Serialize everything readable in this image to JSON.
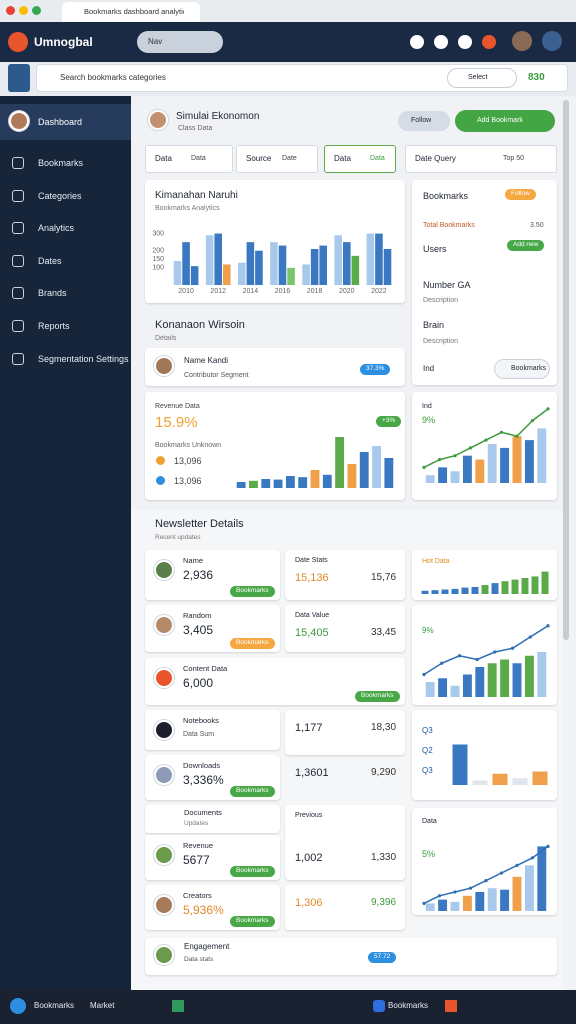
{
  "browser": {
    "tab": "Bookmarks dashboard analytics"
  },
  "header": {
    "app": "Umnogbal",
    "search": "Nav"
  },
  "toolbar": {
    "search": "Search bookmarks categories",
    "select": "Select",
    "count": "830"
  },
  "sidebar": {
    "profile": "Dashboard",
    "items": [
      "Bookmarks",
      "Categories",
      "Analytics",
      "Dates",
      "Brands",
      "Reports",
      "Segmentation Settings"
    ]
  },
  "profile": {
    "name": "Simulai Ekonomon",
    "sub": "Class Data",
    "follow": "Follow",
    "add": "Add Bookmark"
  },
  "filters": [
    [
      "Data",
      "Data"
    ],
    [
      "Source",
      "Date"
    ],
    [
      "Data",
      "Data"
    ],
    [
      "Date Query",
      "Top 50"
    ]
  ],
  "panel1": {
    "title": "Kimanahan Naruhi",
    "subtitle": "Bookmarks Analytics"
  },
  "side": {
    "title": "Bookmarks",
    "follow": "Follow",
    "total": "Total Bookmarks",
    "total_value": "3.50",
    "users": "Users",
    "add": "Add new",
    "number": "Number GA",
    "number_desc": "Description",
    "brain": "Brain",
    "brain_desc": "Description",
    "ind": "Ind",
    "button": "Bookmarks"
  },
  "section1": {
    "title": "Konanaon Wirsoin",
    "sub": "Details"
  },
  "contrib": {
    "name": "Name Kandi",
    "sub": "Contributor Segment",
    "badge": "37.3%"
  },
  "revenue": {
    "label": "Revenue Data",
    "value": "15.9%",
    "sub": "Bookmarks Unknown",
    "a": "13,096",
    "b": "13,096",
    "badge": "+3%"
  },
  "trend1": {
    "label": "Ind",
    "value": "9%"
  },
  "section2": {
    "title": "Newsletter Details",
    "sub": "Recent updates"
  },
  "tiles": [
    {
      "label": "Name",
      "value": "2,936",
      "badge": "Bookmarks"
    },
    {
      "label": "Random",
      "value": "3,405",
      "badge": "Bookmarks"
    },
    {
      "label": "Content Data",
      "value": "6,000",
      "badge": "Bookmarks"
    },
    {
      "label": "Notebooks",
      "value": "Data Sum"
    },
    {
      "label": "Downloads",
      "value": "3,336%",
      "badge": "Bookmarks"
    },
    {
      "label": "Revenue",
      "value": "5677",
      "badge": "Bookmarks"
    },
    {
      "label": "Creators",
      "value": "5,936%",
      "badge": "Bookmarks"
    }
  ],
  "documents": {
    "title": "Documents",
    "sub": "Updates"
  },
  "stats": [
    {
      "label": "Date Stats",
      "a": "15,136",
      "b": "15,76"
    },
    {
      "label": "Data Value",
      "a": "15,405",
      "b": "33,45"
    },
    {
      "a": "1,177",
      "b": "18,30"
    },
    {
      "a": "1,3601",
      "b": "9,290"
    },
    {
      "label": "Previous",
      "a": "1,002",
      "b": "1,330"
    },
    {
      "a": "1,306",
      "b": "9,396"
    }
  ],
  "right": {
    "hot": "Hot Data",
    "pct1": "9%",
    "rows": [
      "Q3",
      "Q2",
      "Q3"
    ],
    "data": "Data",
    "pct2": "5%"
  },
  "bottom": {
    "title": "Engagement",
    "sub": "Data stats",
    "badge": "57.72"
  },
  "taskbar": [
    "Bookmarks",
    "Market",
    "Bookmarks"
  ],
  "chart_data": [
    {
      "type": "bar",
      "categories": [
        "2010",
        "2012",
        "2014",
        "2016",
        "2018",
        "2020",
        "2022"
      ],
      "ylim": [
        0,
        350
      ],
      "yticks": [
        100,
        150,
        200,
        300
      ],
      "series": [
        {
          "color": "#a8c9ec",
          "values": [
            140,
            290,
            130,
            250,
            120,
            290,
            300
          ]
        },
        {
          "color": "#3a78c2",
          "values": [
            250,
            300,
            250,
            230,
            210,
            250,
            300
          ]
        },
        {
          "colors": [
            "#3a78c2",
            "#f0a04b",
            "#3a78c2",
            "#7cc46a",
            "#3a78c2",
            "#5aaa4a",
            "#3a78c2"
          ],
          "values": [
            110,
            120,
            200,
            100,
            230,
            170,
            210
          ]
        }
      ]
    },
    {
      "type": "bar",
      "ylim": [
        0,
        100
      ],
      "series": [
        {
          "colors": [
            "#3a78c2",
            "#5aaa4a",
            "#3a78c2",
            "#3a78c2",
            "#3a78c2",
            "#3a78c2",
            "#f0a04b",
            "#3a78c2",
            "#5aaa4a",
            "#f0a04b",
            "#3a78c2",
            "#a8c9ec",
            "#3a78c2"
          ],
          "values": [
            10,
            12,
            15,
            14,
            20,
            18,
            30,
            22,
            85,
            40,
            60,
            70,
            50
          ]
        }
      ]
    },
    {
      "type": "bar",
      "ylim": [
        0,
        100
      ],
      "series": [
        {
          "colors": [
            "#a8c9ec",
            "#3a78c2",
            "#a8c9ec",
            "#3a78c2",
            "#f0a04b",
            "#a8c9ec",
            "#3a78c2",
            "#f0a04b",
            "#3a78c2",
            "#a8c9ec"
          ],
          "values": [
            10,
            20,
            15,
            35,
            30,
            50,
            45,
            60,
            55,
            70
          ]
        },
        {
          "type": "line",
          "color": "#3e9a3e",
          "values": [
            20,
            30,
            35,
            45,
            55,
            65,
            60,
            80,
            95
          ]
        }
      ]
    },
    {
      "type": "bar",
      "ylim": [
        0,
        100
      ],
      "series": [
        {
          "colors": [
            "#3a78c2",
            "#3a78c2",
            "#3a78c2",
            "#3a78c2",
            "#3a78c2",
            "#3a78c2",
            "#5aaa4a",
            "#3a78c2",
            "#5aaa4a",
            "#5aaa4a",
            "#5aaa4a",
            "#5aaa4a",
            "#5aaa4a"
          ],
          "values": [
            10,
            12,
            14,
            16,
            20,
            22,
            28,
            34,
            40,
            45,
            50,
            55,
            70
          ]
        }
      ]
    },
    {
      "type": "bar",
      "ylim": [
        0,
        100
      ],
      "series": [
        {
          "colors": [
            "#a8c9ec",
            "#3a78c2",
            "#a8c9ec",
            "#3a78c2",
            "#3a78c2",
            "#5aaa4a",
            "#5aaa4a",
            "#3a78c2",
            "#5aaa4a",
            "#a8c9ec"
          ],
          "values": [
            20,
            25,
            15,
            30,
            40,
            45,
            50,
            45,
            55,
            60
          ]
        },
        {
          "type": "line",
          "color": "#2b6cb3",
          "values": [
            30,
            45,
            55,
            50,
            60,
            65,
            80,
            95
          ]
        }
      ]
    },
    {
      "type": "bar",
      "ylim": [
        0,
        100
      ],
      "series": [
        {
          "colors": [
            "#3a78c2",
            "#dfe5ec",
            "#f0a04b",
            "#dfe5ec",
            "#f0a04b"
          ],
          "values": [
            90,
            10,
            25,
            15,
            30
          ]
        }
      ]
    },
    {
      "type": "bar",
      "ylim": [
        0,
        100
      ],
      "series": [
        {
          "colors": [
            "#a8c9ec",
            "#3a78c2",
            "#a8c9ec",
            "#f0a04b",
            "#3a78c2",
            "#a8c9ec",
            "#3a78c2",
            "#f0a04b",
            "#a8c9ec",
            "#3a78c2"
          ],
          "values": [
            10,
            15,
            12,
            20,
            25,
            30,
            28,
            45,
            60,
            85
          ]
        },
        {
          "type": "line",
          "color": "#2b6cb3",
          "values": [
            10,
            20,
            25,
            30,
            40,
            50,
            60,
            70,
            85
          ]
        }
      ]
    }
  ]
}
